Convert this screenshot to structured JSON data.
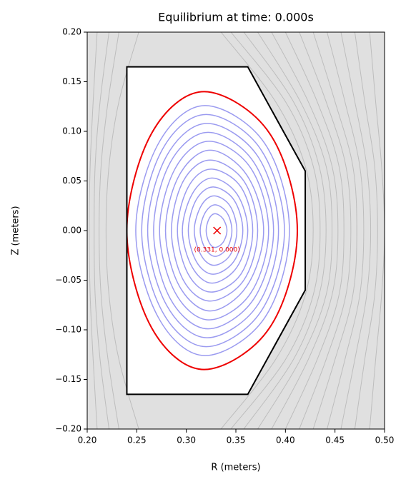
{
  "chart_data": {
    "type": "contour",
    "title": "Equilibrium at time: 0.000s",
    "xlabel": "R (meters)",
    "ylabel": "Z (meters)",
    "xlim": [
      0.2,
      0.5
    ],
    "ylim": [
      -0.2,
      0.2
    ],
    "xticks": [
      {
        "value": 0.2,
        "label": "0.20"
      },
      {
        "value": 0.25,
        "label": "0.25"
      },
      {
        "value": 0.3,
        "label": "0.30"
      },
      {
        "value": 0.35,
        "label": "0.35"
      },
      {
        "value": 0.4,
        "label": "0.40"
      },
      {
        "value": 0.45,
        "label": "0.45"
      },
      {
        "value": 0.5,
        "label": "0.50"
      }
    ],
    "yticks": [
      {
        "value": -0.2,
        "label": "−0.20"
      },
      {
        "value": -0.15,
        "label": "−0.15"
      },
      {
        "value": -0.1,
        "label": "−0.10"
      },
      {
        "value": -0.05,
        "label": "−0.05"
      },
      {
        "value": 0,
        "label": "0.00"
      },
      {
        "value": 0.05,
        "label": "0.05"
      },
      {
        "value": 0.1,
        "label": "0.10"
      },
      {
        "value": 0.15,
        "label": "0.15"
      },
      {
        "value": 0.2,
        "label": "0.20"
      }
    ],
    "background_color": "#e0e0e0",
    "vacuum_field": {
      "color": "#bdbdbd",
      "z": [
        -0.2,
        -0.13,
        -0.065,
        0,
        0.065,
        0.13,
        0.2
      ],
      "contours": [
        {
          "r": [
            0.21,
            0.206,
            0.203,
            0.202,
            0.203,
            0.206,
            0.21
          ]
        },
        {
          "r": [
            0.222,
            0.213,
            0.208,
            0.207,
            0.208,
            0.213,
            0.222
          ]
        },
        {
          "r": [
            0.232,
            0.221,
            0.214,
            0.212,
            0.214,
            0.221,
            0.232
          ]
        },
        {
          "r": [
            0.252,
            0.232,
            0.222,
            0.219,
            0.222,
            0.232,
            0.252
          ]
        },
        {
          "r": [
            0.335,
            0.39,
            0.42,
            0.428,
            0.42,
            0.39,
            0.335
          ]
        },
        {
          "r": [
            0.345,
            0.4,
            0.428,
            0.435,
            0.428,
            0.4,
            0.345
          ]
        },
        {
          "r": [
            0.358,
            0.408,
            0.434,
            0.441,
            0.434,
            0.408,
            0.358
          ]
        },
        {
          "r": [
            0.372,
            0.415,
            0.441,
            0.447,
            0.441,
            0.415,
            0.372
          ]
        },
        {
          "r": [
            0.386,
            0.423,
            0.447,
            0.453,
            0.447,
            0.423,
            0.386
          ]
        },
        {
          "r": [
            0.4,
            0.432,
            0.454,
            0.459,
            0.454,
            0.432,
            0.4
          ]
        },
        {
          "r": [
            0.414,
            0.441,
            0.461,
            0.466,
            0.461,
            0.441,
            0.414
          ]
        },
        {
          "r": [
            0.428,
            0.45,
            0.468,
            0.472,
            0.468,
            0.45,
            0.428
          ]
        },
        {
          "r": [
            0.442,
            0.46,
            0.475,
            0.479,
            0.475,
            0.46,
            0.442
          ]
        },
        {
          "r": [
            0.456,
            0.47,
            0.482,
            0.486,
            0.482,
            0.47,
            0.456
          ]
        },
        {
          "r": [
            0.47,
            0.48,
            0.49,
            0.493,
            0.49,
            0.48,
            0.47
          ]
        },
        {
          "r": [
            0.485,
            0.491,
            0.497,
            0.5,
            0.497,
            0.491,
            0.485
          ]
        }
      ]
    },
    "wall": {
      "color": "#000000",
      "r": [
        0.24,
        0.362,
        0.42,
        0.42,
        0.362,
        0.24
      ],
      "z": [
        0.165,
        0.165,
        0.06,
        -0.06,
        -0.165,
        -0.165
      ]
    },
    "flux_surfaces": {
      "color": "#9b9bf0",
      "contours": [
        {
          "r": [
            0.32,
            0.323,
            0.329,
            0.337,
            0.341,
            0.337,
            0.329,
            0.323
          ],
          "z": [
            0,
            0.012,
            0.017,
            0.012,
            0,
            -0.012,
            -0.017,
            -0.012
          ]
        },
        {
          "r": [
            0.314,
            0.319,
            0.329,
            0.341,
            0.346,
            0.341,
            0.329,
            0.319
          ],
          "z": [
            0,
            0.018,
            0.026,
            0.018,
            0,
            -0.018,
            -0.026,
            -0.018
          ]
        },
        {
          "r": [
            0.308,
            0.315,
            0.328,
            0.344,
            0.351,
            0.344,
            0.328,
            0.315
          ],
          "z": [
            0,
            0.025,
            0.035,
            0.025,
            0,
            -0.025,
            -0.035,
            -0.025
          ]
        },
        {
          "r": [
            0.302,
            0.31,
            0.327,
            0.348,
            0.357,
            0.348,
            0.327,
            0.31
          ],
          "z": [
            0,
            0.031,
            0.044,
            0.031,
            0,
            -0.031,
            -0.044,
            -0.031
          ]
        },
        {
          "r": [
            0.296,
            0.306,
            0.326,
            0.351,
            0.362,
            0.351,
            0.326,
            0.306
          ],
          "z": [
            0,
            0.037,
            0.053,
            0.037,
            0,
            -0.037,
            -0.053,
            -0.037
          ]
        },
        {
          "r": [
            0.291,
            0.302,
            0.325,
            0.355,
            0.367,
            0.355,
            0.325,
            0.302
          ],
          "z": [
            0,
            0.044,
            0.062,
            0.044,
            0,
            -0.044,
            -0.062,
            -0.044
          ]
        },
        {
          "r": [
            0.285,
            0.297,
            0.324,
            0.358,
            0.372,
            0.358,
            0.324,
            0.297
          ],
          "z": [
            0,
            0.05,
            0.071,
            0.05,
            0,
            -0.05,
            -0.071,
            -0.05
          ]
        },
        {
          "r": [
            0.279,
            0.293,
            0.324,
            0.361,
            0.378,
            0.361,
            0.324,
            0.293
          ],
          "z": [
            0,
            0.056,
            0.081,
            0.056,
            0,
            -0.056,
            -0.081,
            -0.056
          ]
        },
        {
          "r": [
            0.273,
            0.289,
            0.323,
            0.365,
            0.383,
            0.365,
            0.323,
            0.289
          ],
          "z": [
            0,
            0.063,
            0.09,
            0.063,
            0,
            -0.063,
            -0.09,
            -0.063
          ]
        },
        {
          "r": [
            0.267,
            0.284,
            0.322,
            0.368,
            0.388,
            0.368,
            0.322,
            0.284
          ],
          "z": [
            0,
            0.069,
            0.099,
            0.069,
            0,
            -0.069,
            -0.099,
            -0.069
          ]
        },
        {
          "r": [
            0.261,
            0.28,
            0.321,
            0.372,
            0.393,
            0.372,
            0.321,
            0.28
          ],
          "z": [
            0,
            0.075,
            0.108,
            0.075,
            0,
            -0.075,
            -0.108,
            -0.075
          ]
        },
        {
          "r": [
            0.255,
            0.276,
            0.32,
            0.375,
            0.399,
            0.375,
            0.32,
            0.276
          ],
          "z": [
            0,
            0.082,
            0.117,
            0.082,
            0,
            -0.082,
            -0.117,
            -0.082
          ]
        },
        {
          "r": [
            0.249,
            0.272,
            0.319,
            0.379,
            0.404,
            0.379,
            0.319,
            0.272
          ],
          "z": [
            0,
            0.088,
            0.126,
            0.088,
            0,
            -0.088,
            -0.126,
            -0.088
          ]
        }
      ]
    },
    "lcfs": {
      "color": "#ee0000",
      "r": [
        0.24,
        0.265,
        0.318,
        0.384,
        0.412,
        0.384,
        0.318,
        0.265
      ],
      "z": [
        0,
        0.098,
        0.14,
        0.098,
        0,
        -0.098,
        -0.14,
        -0.098
      ]
    },
    "magnetic_axis": {
      "color": "#ee0000",
      "r": 0.331,
      "z": 0,
      "label": "(0.331, 0.000)"
    }
  }
}
